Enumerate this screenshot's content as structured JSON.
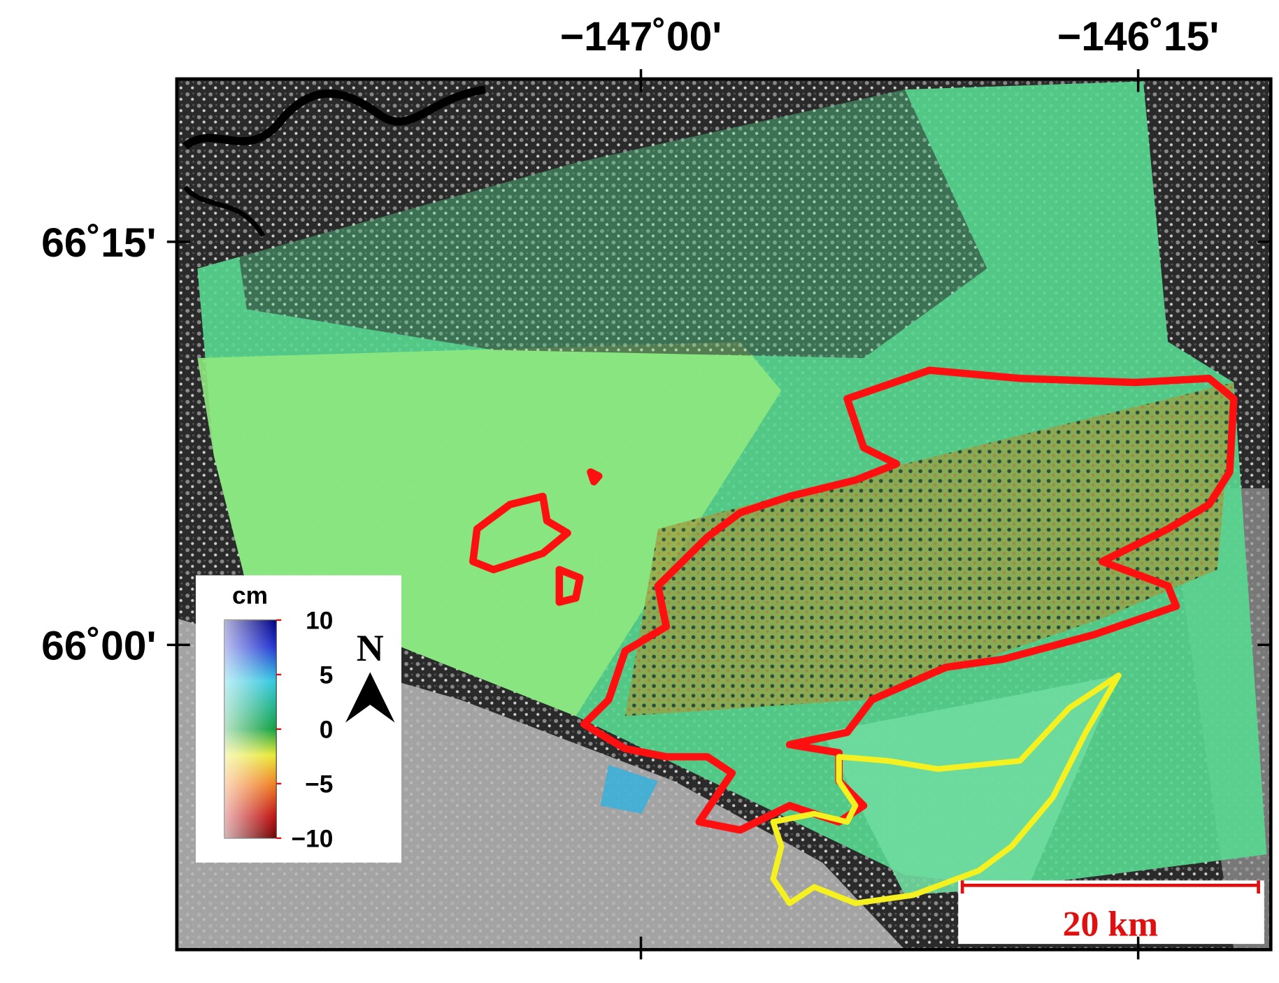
{
  "map": {
    "xlim": [
      -147.7,
      -146.05
    ],
    "ylim": [
      65.811,
      66.351
    ],
    "xticks": [
      {
        "value": -147,
        "label": "−147˚00'"
      },
      {
        "value": -146.25,
        "label": "−146˚15'"
      }
    ],
    "yticks": [
      {
        "value": 66.25,
        "label": "66˚15'"
      },
      {
        "value": 66,
        "label": "66˚00'"
      }
    ]
  },
  "colorbar": {
    "unit": "cm",
    "clim": [
      -10,
      10
    ],
    "ticks": [
      10,
      5,
      0,
      {
        "value": -5,
        "label": "−5"
      },
      {
        "value": -10,
        "label": "−10"
      }
    ]
  },
  "north_arrow": "N",
  "scale_bar": "20 km"
}
